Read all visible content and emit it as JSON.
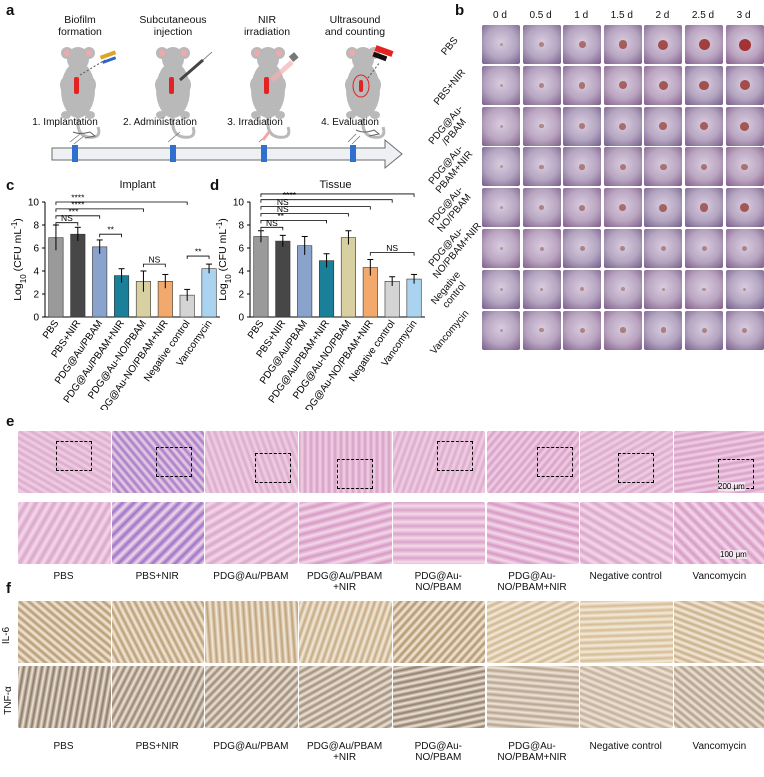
{
  "panel_a": {
    "letter": "a",
    "titles": [
      {
        "line1": "Biofilm",
        "line2": "formation"
      },
      {
        "line1": "Subcutaneous",
        "line2": "injection"
      },
      {
        "line1": "NIR",
        "line2": "irradiation"
      },
      {
        "line1": "Ultrasound",
        "line2": "and counting"
      }
    ],
    "steps": [
      "1. Implantation",
      "2. Administration",
      "3. Irradiation",
      "4. Evaluation"
    ]
  },
  "panel_b": {
    "letter": "b",
    "columns": [
      "0 d",
      "0.5 d",
      "1 d",
      "1.5 d",
      "2 d",
      "2.5 d",
      "3 d"
    ],
    "rows": [
      {
        "label1": "PBS",
        "label2": ""
      },
      {
        "label1": "PBS+NIR",
        "label2": ""
      },
      {
        "label1": "PDG@Au-",
        "label2": "/PBAM"
      },
      {
        "label1": "PDG@Au-",
        "label2": "PBAM+NIR"
      },
      {
        "label1": "PDG@Au-",
        "label2": "NO/PBAM"
      },
      {
        "label1": "PDG@Au-",
        "label2": "NO/PBAM+NIR"
      },
      {
        "label1": "Negative",
        "label2": "control"
      },
      {
        "label1": "Vancomycin",
        "label2": ""
      }
    ],
    "wound_severity": [
      [
        0,
        0.2,
        0.4,
        0.55,
        0.7,
        0.8,
        0.9
      ],
      [
        0,
        0.2,
        0.35,
        0.5,
        0.6,
        0.65,
        0.7
      ],
      [
        0,
        0.15,
        0.3,
        0.4,
        0.5,
        0.55,
        0.6
      ],
      [
        0,
        0.15,
        0.25,
        0.3,
        0.35,
        0.35,
        0.35
      ],
      [
        0,
        0.2,
        0.3,
        0.4,
        0.5,
        0.55,
        0.6
      ],
      [
        0,
        0.1,
        0.2,
        0.2,
        0.2,
        0.2,
        0.2
      ],
      [
        0,
        0.05,
        0.1,
        0.1,
        0.05,
        0.05,
        0.05
      ],
      [
        0,
        0.15,
        0.2,
        0.25,
        0.25,
        0.2,
        0.2
      ]
    ]
  },
  "panel_c": {
    "letter": "c",
    "chart_data": {
      "type": "bar",
      "title": "Implant",
      "ylabel": "Log10 (CFU mL-1)",
      "ylim": [
        0,
        10
      ],
      "yticks": [
        "0",
        "2",
        "4",
        "6",
        "8",
        "10"
      ],
      "categories": [
        "PBS",
        "PBS+NIR",
        "PDG@Au/PBAM",
        "PDG@Au/PBAM+NIR",
        "PDG@Au-NO/PBAM",
        "PDG@Au-NO/PBAM+NIR",
        "Negative control",
        "Vancomycin"
      ],
      "values": [
        6.9,
        7.2,
        6.1,
        3.6,
        3.1,
        3.1,
        1.9,
        4.2
      ],
      "errors": [
        1.1,
        0.6,
        0.6,
        0.6,
        0.9,
        0.6,
        0.5,
        0.4
      ],
      "colors": [
        "#9a9a9a",
        "#474747",
        "#8aa3cc",
        "#1a7f98",
        "#d8d0a0",
        "#f3a86c",
        "#d4d4d4",
        "#a9d3ee"
      ],
      "significance": [
        "NS",
        "***",
        "****",
        "****",
        "**",
        "NS",
        "**"
      ]
    }
  },
  "panel_d": {
    "letter": "d",
    "chart_data": {
      "type": "bar",
      "title": "Tissue",
      "ylabel": "Log10 (CFU mL-1)",
      "ylim": [
        0,
        10
      ],
      "yticks": [
        "0",
        "2",
        "4",
        "6",
        "8",
        "10"
      ],
      "categories": [
        "PBS",
        "PBS+NIR",
        "PDG@Au/PBAM",
        "PDG@Au/PBAM+NIR",
        "PDG@Au-NO/PBAM",
        "PDG@Au-NO/PBAM+NIR",
        "Negative control",
        "Vancomycin"
      ],
      "values": [
        7.0,
        6.6,
        6.2,
        4.9,
        6.9,
        4.3,
        3.1,
        3.3
      ],
      "errors": [
        0.5,
        0.5,
        0.8,
        0.6,
        0.6,
        0.7,
        0.4,
        0.4
      ],
      "colors": [
        "#9a9a9a",
        "#474747",
        "#8aa3cc",
        "#1a7f98",
        "#d8d0a0",
        "#f3a86c",
        "#d4d4d4",
        "#a9d3ee"
      ],
      "significance": [
        "NS",
        "**",
        "NS",
        "NS",
        "****",
        "****",
        "NS"
      ]
    }
  },
  "panel_e": {
    "letter": "e",
    "scale_top": "200 μm",
    "scale_bottom": "100 μm",
    "labels": [
      {
        "l1": "PBS",
        "l2": ""
      },
      {
        "l1": "PBS+NIR",
        "l2": ""
      },
      {
        "l1": "PDG@Au/PBAM",
        "l2": ""
      },
      {
        "l1": "PDG@Au/PBAM",
        "l2": "+NIR"
      },
      {
        "l1": "PDG@Au-",
        "l2": "NO/PBAM"
      },
      {
        "l1": "PDG@Au-",
        "l2": "NO/PBAM+NIR"
      },
      {
        "l1": "Negative control",
        "l2": ""
      },
      {
        "l1": "Vancomycin",
        "l2": ""
      }
    ]
  },
  "panel_f": {
    "letter": "f",
    "row_labels": [
      "IL-6",
      "TNF-α"
    ],
    "labels": [
      {
        "l1": "PBS",
        "l2": ""
      },
      {
        "l1": "PBS+NIR",
        "l2": ""
      },
      {
        "l1": "PDG@Au/PBAM",
        "l2": ""
      },
      {
        "l1": "PDG@Au/PBAM",
        "l2": "+NIR"
      },
      {
        "l1": "PDG@Au-",
        "l2": "NO/PBAM"
      },
      {
        "l1": "PDG@Au-",
        "l2": "NO/PBAM+NIR"
      },
      {
        "l1": "Negative control",
        "l2": ""
      },
      {
        "l1": "Vancomycin",
        "l2": ""
      }
    ]
  }
}
